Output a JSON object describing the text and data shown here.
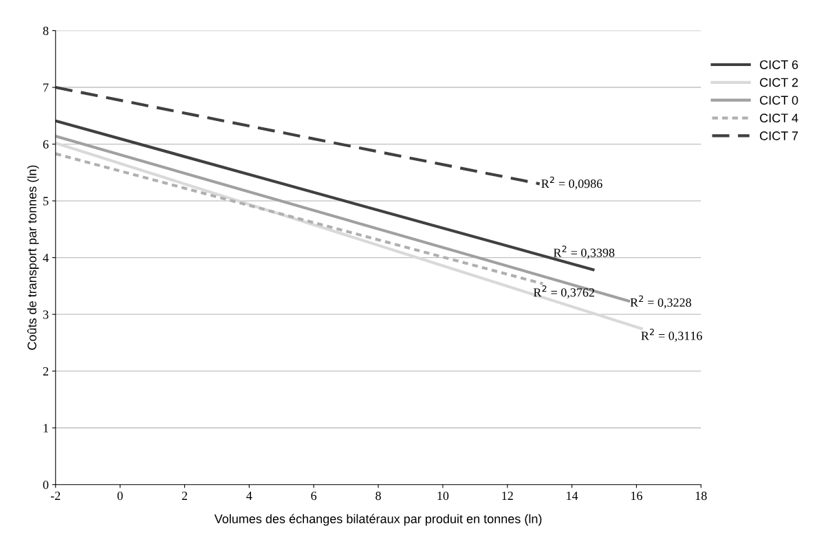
{
  "chart_data": {
    "type": "line",
    "xlabel": "Volumes des échanges bilatéraux par produit en tonnes (ln)",
    "ylabel": "Coûts de transport par tonnes (ln)",
    "xlim": [
      -2,
      18
    ],
    "xticks": [
      -2,
      0,
      2,
      4,
      6,
      8,
      10,
      12,
      14,
      16,
      18
    ],
    "ylim": [
      0,
      8
    ],
    "yticks": [
      0,
      1,
      2,
      3,
      4,
      5,
      6,
      7,
      8
    ],
    "grid": "y",
    "legend": "right",
    "marker": "none",
    "series": [
      {
        "name": "CICT 6",
        "color": "#404040",
        "line_style": "solid",
        "x": [
          -2,
          14.7
        ],
        "values": [
          6.41,
          3.78
        ]
      },
      {
        "name": "CICT 2",
        "color": "#d9d9d9",
        "line_style": "solid",
        "x": [
          -2,
          16.2
        ],
        "values": [
          6.02,
          2.74
        ]
      },
      {
        "name": "CICT 0",
        "color": "#a0a0a0",
        "line_style": "solid",
        "x": [
          -2,
          15.8
        ],
        "values": [
          6.14,
          3.23
        ]
      },
      {
        "name": "CICT 4",
        "color": "#b0b0b0",
        "line_style": "dotted",
        "x": [
          -2,
          13.1
        ],
        "values": [
          5.83,
          3.54
        ]
      },
      {
        "name": "CICT 7",
        "color": "#404040",
        "line_style": "dashed",
        "x": [
          -2,
          13.0
        ],
        "values": [
          7.0,
          5.3
        ]
      }
    ],
    "annotations": [
      {
        "text": "R$^{2}$ = 0,0986",
        "x": 13.0,
        "y": 5.3
      },
      {
        "text": "R$^{2}$ = 0,3398",
        "x": 14.7,
        "y": 3.78
      },
      {
        "text": "R$^{2}$ = 0,3762",
        "x": 13.1,
        "y": 3.54
      },
      {
        "text": "R$^{2}$ = 0,3228",
        "x": 15.8,
        "y": 3.23
      },
      {
        "text": "R$^{2}$ = 0,3116",
        "x": 16.2,
        "y": 2.74
      }
    ]
  }
}
